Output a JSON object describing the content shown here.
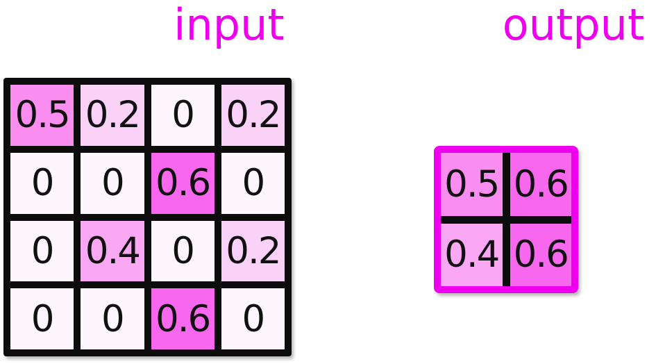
{
  "titles": {
    "input": "input",
    "output": "output"
  },
  "colors": {
    "title_text": "#ee00ee",
    "input_grid_line": "#0c0c0c",
    "output_grid_border": "#ee00ee",
    "output_grid_inner_line": "#0c0c0c",
    "cell_text": "#111111",
    "value_colors": {
      "0": "#fdf6fc",
      "0.2": "#fbd2f7",
      "0.4": "#fba8f4",
      "0.5": "#f98df0",
      "0.6": "#f768ee"
    }
  },
  "input_grid": {
    "rows": 4,
    "cols": 4,
    "cells": [
      [
        "0.5",
        "0.2",
        "0",
        "0.2"
      ],
      [
        "0",
        "0",
        "0.6",
        "0"
      ],
      [
        "0",
        "0.4",
        "0",
        "0.2"
      ],
      [
        "0",
        "0",
        "0.6",
        "0"
      ]
    ]
  },
  "output_grid": {
    "rows": 2,
    "cols": 2,
    "cells": [
      [
        "0.5",
        "0.6"
      ],
      [
        "0.4",
        "0.6"
      ]
    ]
  }
}
